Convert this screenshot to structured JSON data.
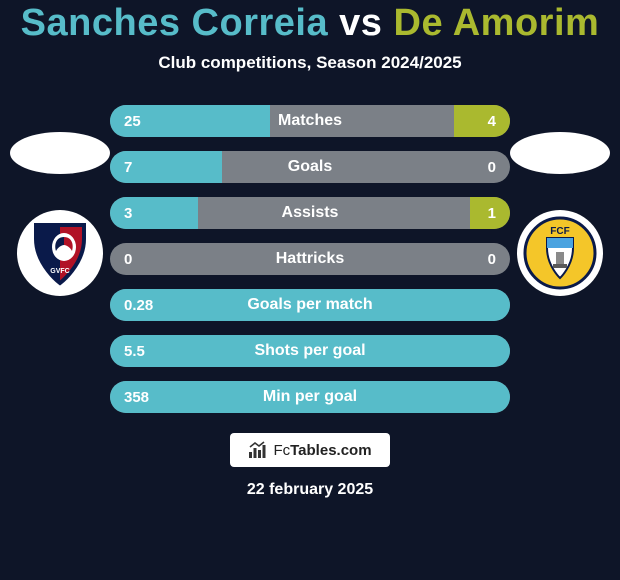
{
  "background_color": "#0e1528",
  "title": {
    "player1": "Sanches Correia",
    "vs": "vs",
    "player2": "De Amorim",
    "player1_color": "#57bcc9",
    "vs_color": "#ffffff",
    "player2_color": "#aab92f"
  },
  "subtitle": {
    "text": "Club competitions, Season 2024/2025",
    "color": "#ffffff"
  },
  "stat_colors": {
    "track": "#7b8087",
    "left_fill": "#57bcc9",
    "right_fill": "#aab92f"
  },
  "stats": [
    {
      "label": "Matches",
      "left_val": "25",
      "right_val": "4",
      "left_pct": 40,
      "right_pct": 14
    },
    {
      "label": "Goals",
      "left_val": "7",
      "right_val": "0",
      "left_pct": 28,
      "right_pct": 0
    },
    {
      "label": "Assists",
      "left_val": "3",
      "right_val": "1",
      "left_pct": 22,
      "right_pct": 10
    },
    {
      "label": "Hattricks",
      "left_val": "0",
      "right_val": "0",
      "left_pct": 0,
      "right_pct": 0
    },
    {
      "label": "Goals per match",
      "left_val": "0.28",
      "right_val": "",
      "left_pct": 100,
      "right_pct": 0
    },
    {
      "label": "Shots per goal",
      "left_val": "5.5",
      "right_val": "",
      "left_pct": 100,
      "right_pct": 0
    },
    {
      "label": "Min per goal",
      "left_val": "358",
      "right_val": "",
      "left_pct": 100,
      "right_pct": 0
    }
  ],
  "footer_brand": {
    "prefix": "Fc",
    "suffix": "Tables.com"
  },
  "date": {
    "text": "22 february 2025",
    "color": "#ffffff"
  },
  "club_left": {
    "bg": "#ffffff",
    "svg": "gvfc"
  },
  "club_right": {
    "bg": "#ffffff",
    "svg": "fcf"
  }
}
